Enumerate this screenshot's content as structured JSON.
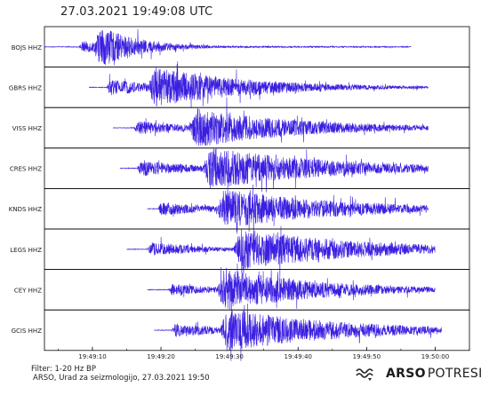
{
  "title": "27.03.2021  19:49:08 UTC",
  "footer": {
    "filter": "Filter: 1-20 Hz BP",
    "credit": "ARSO, Urad za seizmologijo, 27.03.2021  19:50"
  },
  "brand": {
    "strong": "ARSO",
    "light": "POTRESI",
    "icon": "seismic-wave-icon"
  },
  "colors": {
    "trace": "#3a1fe0",
    "frame": "#000000"
  },
  "chart_data": {
    "type": "line",
    "title": "27.03.2021  19:49:08 UTC",
    "xlabel": "",
    "ylabel": "",
    "x_ticks": [
      "19:49:10",
      "19:49:20",
      "19:49:30",
      "19:49:40",
      "19:49:50",
      "19:50:00"
    ],
    "x_tick_seconds": [
      10,
      20,
      30,
      40,
      50,
      60
    ],
    "xlim_seconds": [
      3,
      65
    ],
    "grid": false,
    "series": [
      {
        "name": "BOJS HHZ",
        "start_s": 3.0,
        "end_s": 56.5,
        "p_arrival_s": 8.0,
        "s_arrival_s": 10.0,
        "p_amp": 0.25,
        "s_amp": 1.0,
        "coda_decay_s": 6
      },
      {
        "name": "GBRS HHZ",
        "start_s": 9.5,
        "end_s": 59.0,
        "p_arrival_s": 12.0,
        "s_arrival_s": 18.0,
        "p_amp": 0.35,
        "s_amp": 0.9,
        "coda_decay_s": 14
      },
      {
        "name": "VISS HHZ",
        "start_s": 13.0,
        "end_s": 59.0,
        "p_arrival_s": 16.0,
        "s_arrival_s": 24.0,
        "p_amp": 0.3,
        "s_amp": 0.85,
        "coda_decay_s": 16
      },
      {
        "name": "CRES HHZ",
        "start_s": 14.0,
        "end_s": 59.0,
        "p_arrival_s": 16.5,
        "s_arrival_s": 26.0,
        "p_amp": 0.35,
        "s_amp": 0.9,
        "coda_decay_s": 18
      },
      {
        "name": "KNDS HHZ",
        "start_s": 18.0,
        "end_s": 59.0,
        "p_arrival_s": 19.5,
        "s_arrival_s": 28.0,
        "p_amp": 0.3,
        "s_amp": 0.85,
        "coda_decay_s": 18
      },
      {
        "name": "LEGS HHZ",
        "start_s": 15.0,
        "end_s": 60.0,
        "p_arrival_s": 18.0,
        "s_arrival_s": 30.5,
        "p_amp": 0.3,
        "s_amp": 0.9,
        "coda_decay_s": 18
      },
      {
        "name": "CEY HHZ",
        "start_s": 18.0,
        "end_s": 60.0,
        "p_arrival_s": 21.0,
        "s_arrival_s": 28.0,
        "p_amp": 0.25,
        "s_amp": 0.9,
        "coda_decay_s": 15
      },
      {
        "name": "GCIS HHZ",
        "start_s": 19.0,
        "end_s": 61.0,
        "p_arrival_s": 21.5,
        "s_arrival_s": 28.5,
        "p_amp": 0.3,
        "s_amp": 0.9,
        "coda_decay_s": 18
      }
    ]
  }
}
